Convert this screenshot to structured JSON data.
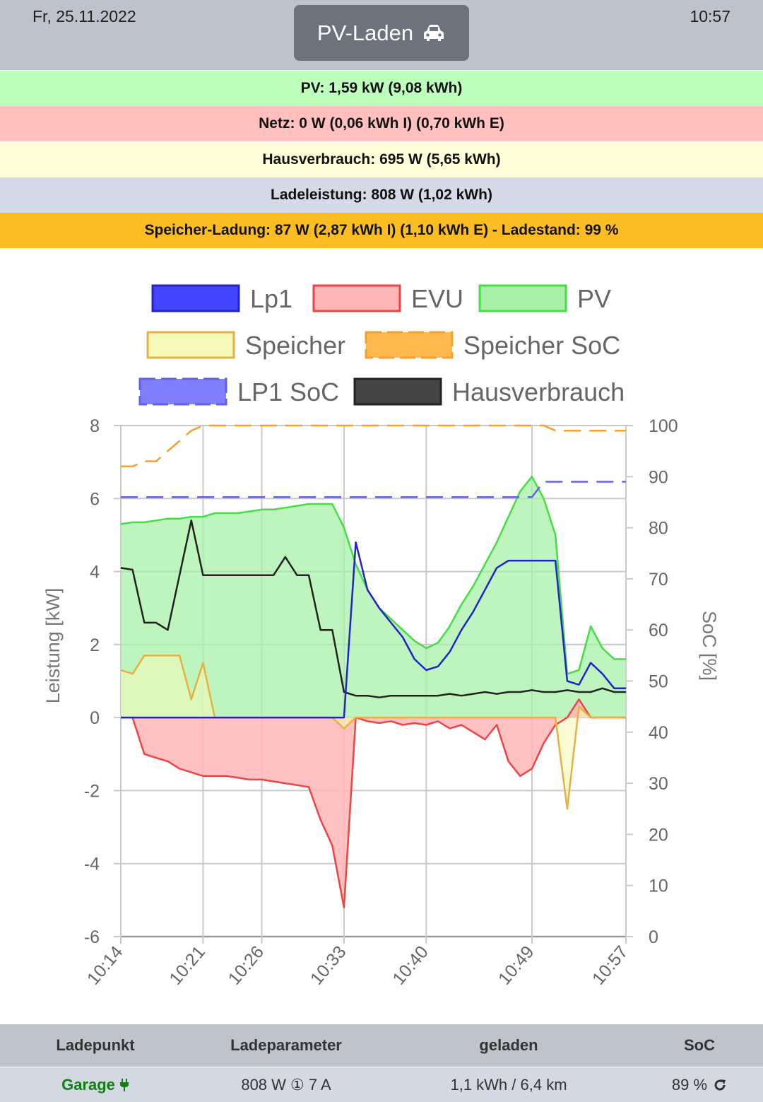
{
  "header": {
    "date": "Fr, 25.11.2022",
    "time": "10:57",
    "mode_label": "PV-Laden",
    "mode_icon": "car-icon"
  },
  "info": {
    "pv": "PV: 1,59 kW (9,08 kWh)",
    "netz": "Netz: 0 W (0,06 kWh I) (0,70 kWh E)",
    "haus": "Hausverbrauch: 695 W (5,65 kWh)",
    "lade": "Ladeleistung: 808 W (1,02 kWh)",
    "speicher": "Speicher-Ladung: 87 W (2,87 kWh I) (1,10 kWh E)  - Ladestand: 99 %"
  },
  "colors": {
    "pv_row": "#bfffbd",
    "netz_row": "#ffc0bf",
    "haus_row": "#fefed9",
    "lade_row": "#d5dae6",
    "speicher_row": "#fcbd23",
    "mode_button": "#6c737c"
  },
  "chart_data": {
    "type": "line",
    "ylabel": "Leistung [kW]",
    "y2label": "SoC [%]",
    "ylim": [
      -6,
      8
    ],
    "y2lim": [
      0,
      100
    ],
    "yticks": [
      8,
      6,
      4,
      2,
      0,
      -2,
      -4,
      -6
    ],
    "y2ticks": [
      100,
      90,
      80,
      70,
      60,
      50,
      40,
      30,
      20,
      10,
      0
    ],
    "x": [
      "10:14",
      "10:15",
      "10:16",
      "10:17",
      "10:18",
      "10:19",
      "10:20",
      "10:21",
      "10:22",
      "10:23",
      "10:24",
      "10:25",
      "10:26",
      "10:27",
      "10:28",
      "10:29",
      "10:30",
      "10:31",
      "10:32",
      "10:33",
      "10:34",
      "10:35",
      "10:36",
      "10:37",
      "10:38",
      "10:39",
      "10:40",
      "10:41",
      "10:42",
      "10:43",
      "10:44",
      "10:45",
      "10:46",
      "10:47",
      "10:48",
      "10:49",
      "10:50",
      "10:51",
      "10:52",
      "10:53",
      "10:54",
      "10:55",
      "10:56",
      "10:57"
    ],
    "xticks": [
      "10:14",
      "10:21",
      "10:26",
      "10:33",
      "10:40",
      "10:49",
      "10:57"
    ],
    "legend": [
      {
        "name": "Lp1",
        "stroke": "#2222cc",
        "fill": "#4444ff",
        "dash": false
      },
      {
        "name": "EVU",
        "stroke": "#ee4444",
        "fill": "#ffb6b6",
        "dash": false
      },
      {
        "name": "PV",
        "stroke": "#44dd44",
        "fill": "#a8f0a8",
        "dash": false
      },
      {
        "name": "Speicher",
        "stroke": "#e8b040",
        "fill": "#f4f8b8",
        "dash": false
      },
      {
        "name": "Speicher SoC",
        "stroke": "#f7a030",
        "fill": "#ffb84d",
        "dash": true
      },
      {
        "name": "LP1 SoC",
        "stroke": "#6060ee",
        "fill": "#7f7fff",
        "dash": true
      },
      {
        "name": "Hausverbrauch",
        "stroke": "#222222",
        "fill": "#444444",
        "dash": false
      }
    ],
    "series": [
      {
        "name": "PV",
        "values": [
          5.3,
          5.35,
          5.35,
          5.4,
          5.45,
          5.45,
          5.5,
          5.5,
          5.6,
          5.6,
          5.6,
          5.65,
          5.7,
          5.7,
          5.75,
          5.8,
          5.85,
          5.85,
          5.85,
          5.2,
          4.2,
          3.5,
          3.0,
          2.7,
          2.4,
          2.1,
          1.9,
          2.05,
          2.5,
          3.1,
          3.6,
          4.2,
          4.8,
          5.5,
          6.2,
          6.6,
          6.0,
          5.0,
          1.2,
          1.3,
          2.5,
          1.9,
          1.6,
          1.6
        ]
      },
      {
        "name": "EVU",
        "values": [
          0,
          0,
          -1.0,
          -1.1,
          -1.2,
          -1.4,
          -1.5,
          -1.6,
          -1.6,
          -1.6,
          -1.65,
          -1.7,
          -1.7,
          -1.75,
          -1.8,
          -1.85,
          -1.9,
          -2.8,
          -3.5,
          -5.2,
          0,
          -0.1,
          -0.15,
          -0.1,
          -0.2,
          -0.15,
          -0.2,
          -0.1,
          -0.3,
          -0.2,
          -0.4,
          -0.6,
          -0.2,
          -1.2,
          -1.6,
          -1.4,
          -0.7,
          -0.2,
          0,
          0.5,
          0,
          0,
          0,
          0
        ]
      },
      {
        "name": "Lp1",
        "values": [
          0,
          0,
          0,
          0,
          0,
          0,
          0,
          0,
          0,
          0,
          0,
          0,
          0,
          0,
          0,
          0,
          0,
          0,
          0,
          0,
          4.8,
          3.5,
          3.0,
          2.6,
          2.2,
          1.6,
          1.3,
          1.4,
          1.8,
          2.4,
          2.9,
          3.5,
          4.1,
          4.3,
          4.3,
          4.3,
          4.3,
          4.3,
          1.0,
          0.9,
          1.5,
          1.2,
          0.8,
          0.8
        ]
      },
      {
        "name": "Hausverbrauch",
        "values": [
          4.1,
          4.05,
          2.6,
          2.6,
          2.4,
          3.9,
          5.4,
          3.9,
          3.9,
          3.9,
          3.9,
          3.9,
          3.9,
          3.9,
          4.4,
          3.9,
          3.9,
          2.4,
          2.4,
          0.7,
          0.6,
          0.6,
          0.55,
          0.6,
          0.6,
          0.6,
          0.6,
          0.6,
          0.65,
          0.6,
          0.65,
          0.7,
          0.65,
          0.7,
          0.7,
          0.75,
          0.7,
          0.7,
          0.75,
          0.7,
          0.7,
          0.8,
          0.7,
          0.7
        ]
      },
      {
        "name": "Speicher",
        "values": [
          1.3,
          1.2,
          1.7,
          1.7,
          1.7,
          1.7,
          0.5,
          1.5,
          0,
          0,
          0,
          0,
          0,
          0,
          0,
          0,
          0,
          0,
          0,
          -0.3,
          0,
          0,
          0,
          0,
          0,
          0,
          0,
          0,
          0,
          0,
          0,
          0,
          0,
          0,
          0,
          0,
          0,
          0,
          -2.5,
          0.3,
          0,
          0,
          0,
          0
        ]
      },
      {
        "name": "Speicher SoC",
        "values": [
          92,
          92,
          93,
          93,
          95,
          97,
          99,
          100,
          100,
          100,
          100,
          100,
          100,
          100,
          100,
          100,
          100,
          100,
          100,
          100,
          100,
          100,
          100,
          100,
          100,
          100,
          100,
          100,
          100,
          100,
          100,
          100,
          100,
          100,
          100,
          100,
          100,
          99,
          99,
          99,
          99,
          99,
          99,
          99
        ]
      },
      {
        "name": "LP1 SoC",
        "values": [
          86,
          86,
          86,
          86,
          86,
          86,
          86,
          86,
          86,
          86,
          86,
          86,
          86,
          86,
          86,
          86,
          86,
          86,
          86,
          86,
          86,
          86,
          86,
          86,
          86,
          86,
          86,
          86,
          86,
          86,
          86,
          86,
          86,
          86,
          86,
          86,
          89,
          89,
          89,
          89,
          89,
          89,
          89,
          89
        ]
      }
    ]
  },
  "table": {
    "headers": [
      "Ladepunkt",
      "Ladeparameter",
      "geladen",
      "SoC"
    ],
    "row": {
      "ladepunkt": "Garage",
      "ladepunkt_icon": "plug-icon",
      "ladeparameter": "808 W ① 7 A",
      "geladen": "1,1 kWh / 6,4 km",
      "soc": "89 %",
      "soc_icon": "refresh-icon"
    }
  }
}
